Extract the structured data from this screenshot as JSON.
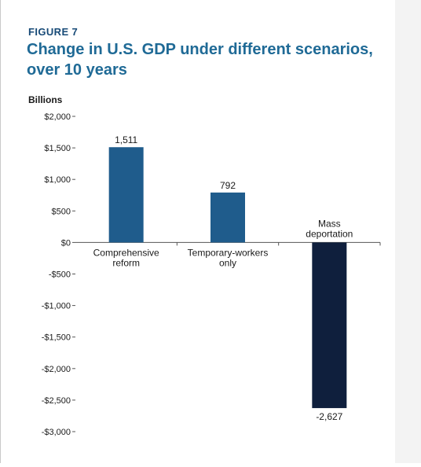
{
  "figure_label": "FIGURE 7",
  "title": "Change in U.S. GDP under different scenarios, over 10 years",
  "chart_data": {
    "type": "bar",
    "title": "Change in U.S. GDP under different scenarios, over 10 years",
    "ylabel": "Billions",
    "xlabel": "",
    "categories": [
      [
        "Comprehensive",
        "reform"
      ],
      [
        "Temporary-workers",
        "only"
      ],
      [
        "Mass",
        "deportation"
      ]
    ],
    "values": [
      1511,
      792,
      -2627
    ],
    "value_labels": [
      "1,511",
      "792",
      "-2,627"
    ],
    "ylim": [
      -3000,
      2000
    ],
    "yticks": [
      2000,
      1500,
      1000,
      500,
      0,
      -500,
      -1000,
      -1500,
      -2000,
      -2500,
      -3000
    ],
    "ytick_labels": [
      "$2,000",
      "$1,500",
      "$1,000",
      "$500",
      "$0",
      "-$500",
      "-$1,000",
      "-$1,500",
      "-$2,000",
      "-$2,500",
      "-$3,000"
    ],
    "bar_colors": [
      "#1f5c8c",
      "#1f5c8c",
      "#0f1f3d"
    ],
    "grid": false,
    "legend": "none"
  }
}
